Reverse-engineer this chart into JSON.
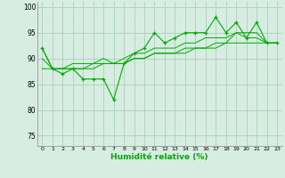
{
  "title": "",
  "xlabel": "Humidité relative (%)",
  "ylabel": "",
  "background_color": "#d7ede2",
  "grid_color": "#aacfba",
  "line_color": "#00aa00",
  "xlim": [
    -0.5,
    23.5
  ],
  "ylim": [
    73,
    101
  ],
  "yticks": [
    75,
    80,
    85,
    90,
    95,
    100
  ],
  "xticks": [
    0,
    1,
    2,
    3,
    4,
    5,
    6,
    7,
    8,
    9,
    10,
    11,
    12,
    13,
    14,
    15,
    16,
    17,
    18,
    19,
    20,
    21,
    22,
    23
  ],
  "line1": [
    92,
    88,
    87,
    88,
    86,
    86,
    86,
    82,
    89,
    91,
    92,
    95,
    93,
    94,
    95,
    95,
    95,
    98,
    95,
    97,
    94,
    97,
    93,
    93
  ],
  "line2": [
    92,
    88,
    88,
    89,
    89,
    89,
    90,
    89,
    90,
    91,
    91,
    92,
    92,
    92,
    93,
    93,
    94,
    94,
    94,
    95,
    95,
    95,
    93,
    93
  ],
  "line3": [
    90,
    88,
    88,
    88,
    88,
    89,
    89,
    89,
    89,
    90,
    90,
    91,
    91,
    91,
    92,
    92,
    92,
    93,
    93,
    95,
    94,
    94,
    93,
    93
  ],
  "line4": [
    88,
    88,
    88,
    88,
    88,
    88,
    89,
    89,
    89,
    90,
    90,
    91,
    91,
    91,
    91,
    92,
    92,
    92,
    93,
    93,
    93,
    93,
    93,
    93
  ]
}
